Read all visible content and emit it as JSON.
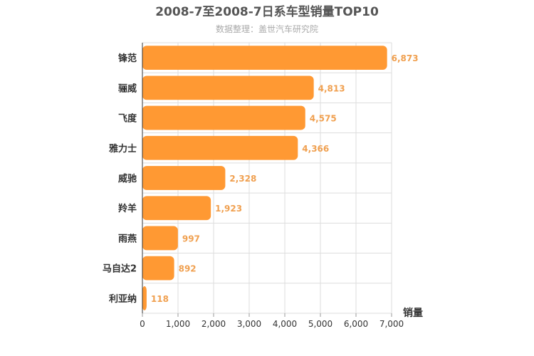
{
  "chart_data": {
    "type": "bar",
    "orientation": "horizontal",
    "title": "2008-7至2008-7日系车型销量TOP10",
    "subtitle": "数据整理：盖世汽车研究院",
    "categories": [
      "锋范",
      "骊威",
      "飞度",
      "雅力士",
      "威驰",
      "羚羊",
      "雨燕",
      "马自达2",
      "利亚纳"
    ],
    "values": [
      6873,
      4813,
      4575,
      4366,
      2328,
      1923,
      997,
      892,
      118
    ],
    "value_labels": [
      "6,873",
      "4,813",
      "4,575",
      "4,366",
      "2,328",
      "1,923",
      "997",
      "892",
      "118"
    ],
    "xlabel": "销量",
    "ylabel": "",
    "xlim": [
      0,
      7000
    ],
    "x_ticks": [
      0,
      1000,
      2000,
      3000,
      4000,
      5000,
      6000,
      7000
    ],
    "x_tick_labels": [
      "0",
      "1,000",
      "2,000",
      "3,000",
      "4,000",
      "5,000",
      "6,000",
      "7,000"
    ],
    "grid": true,
    "legend": "none",
    "bar_color": "#ff9933",
    "value_label_color": "#f0a050"
  }
}
